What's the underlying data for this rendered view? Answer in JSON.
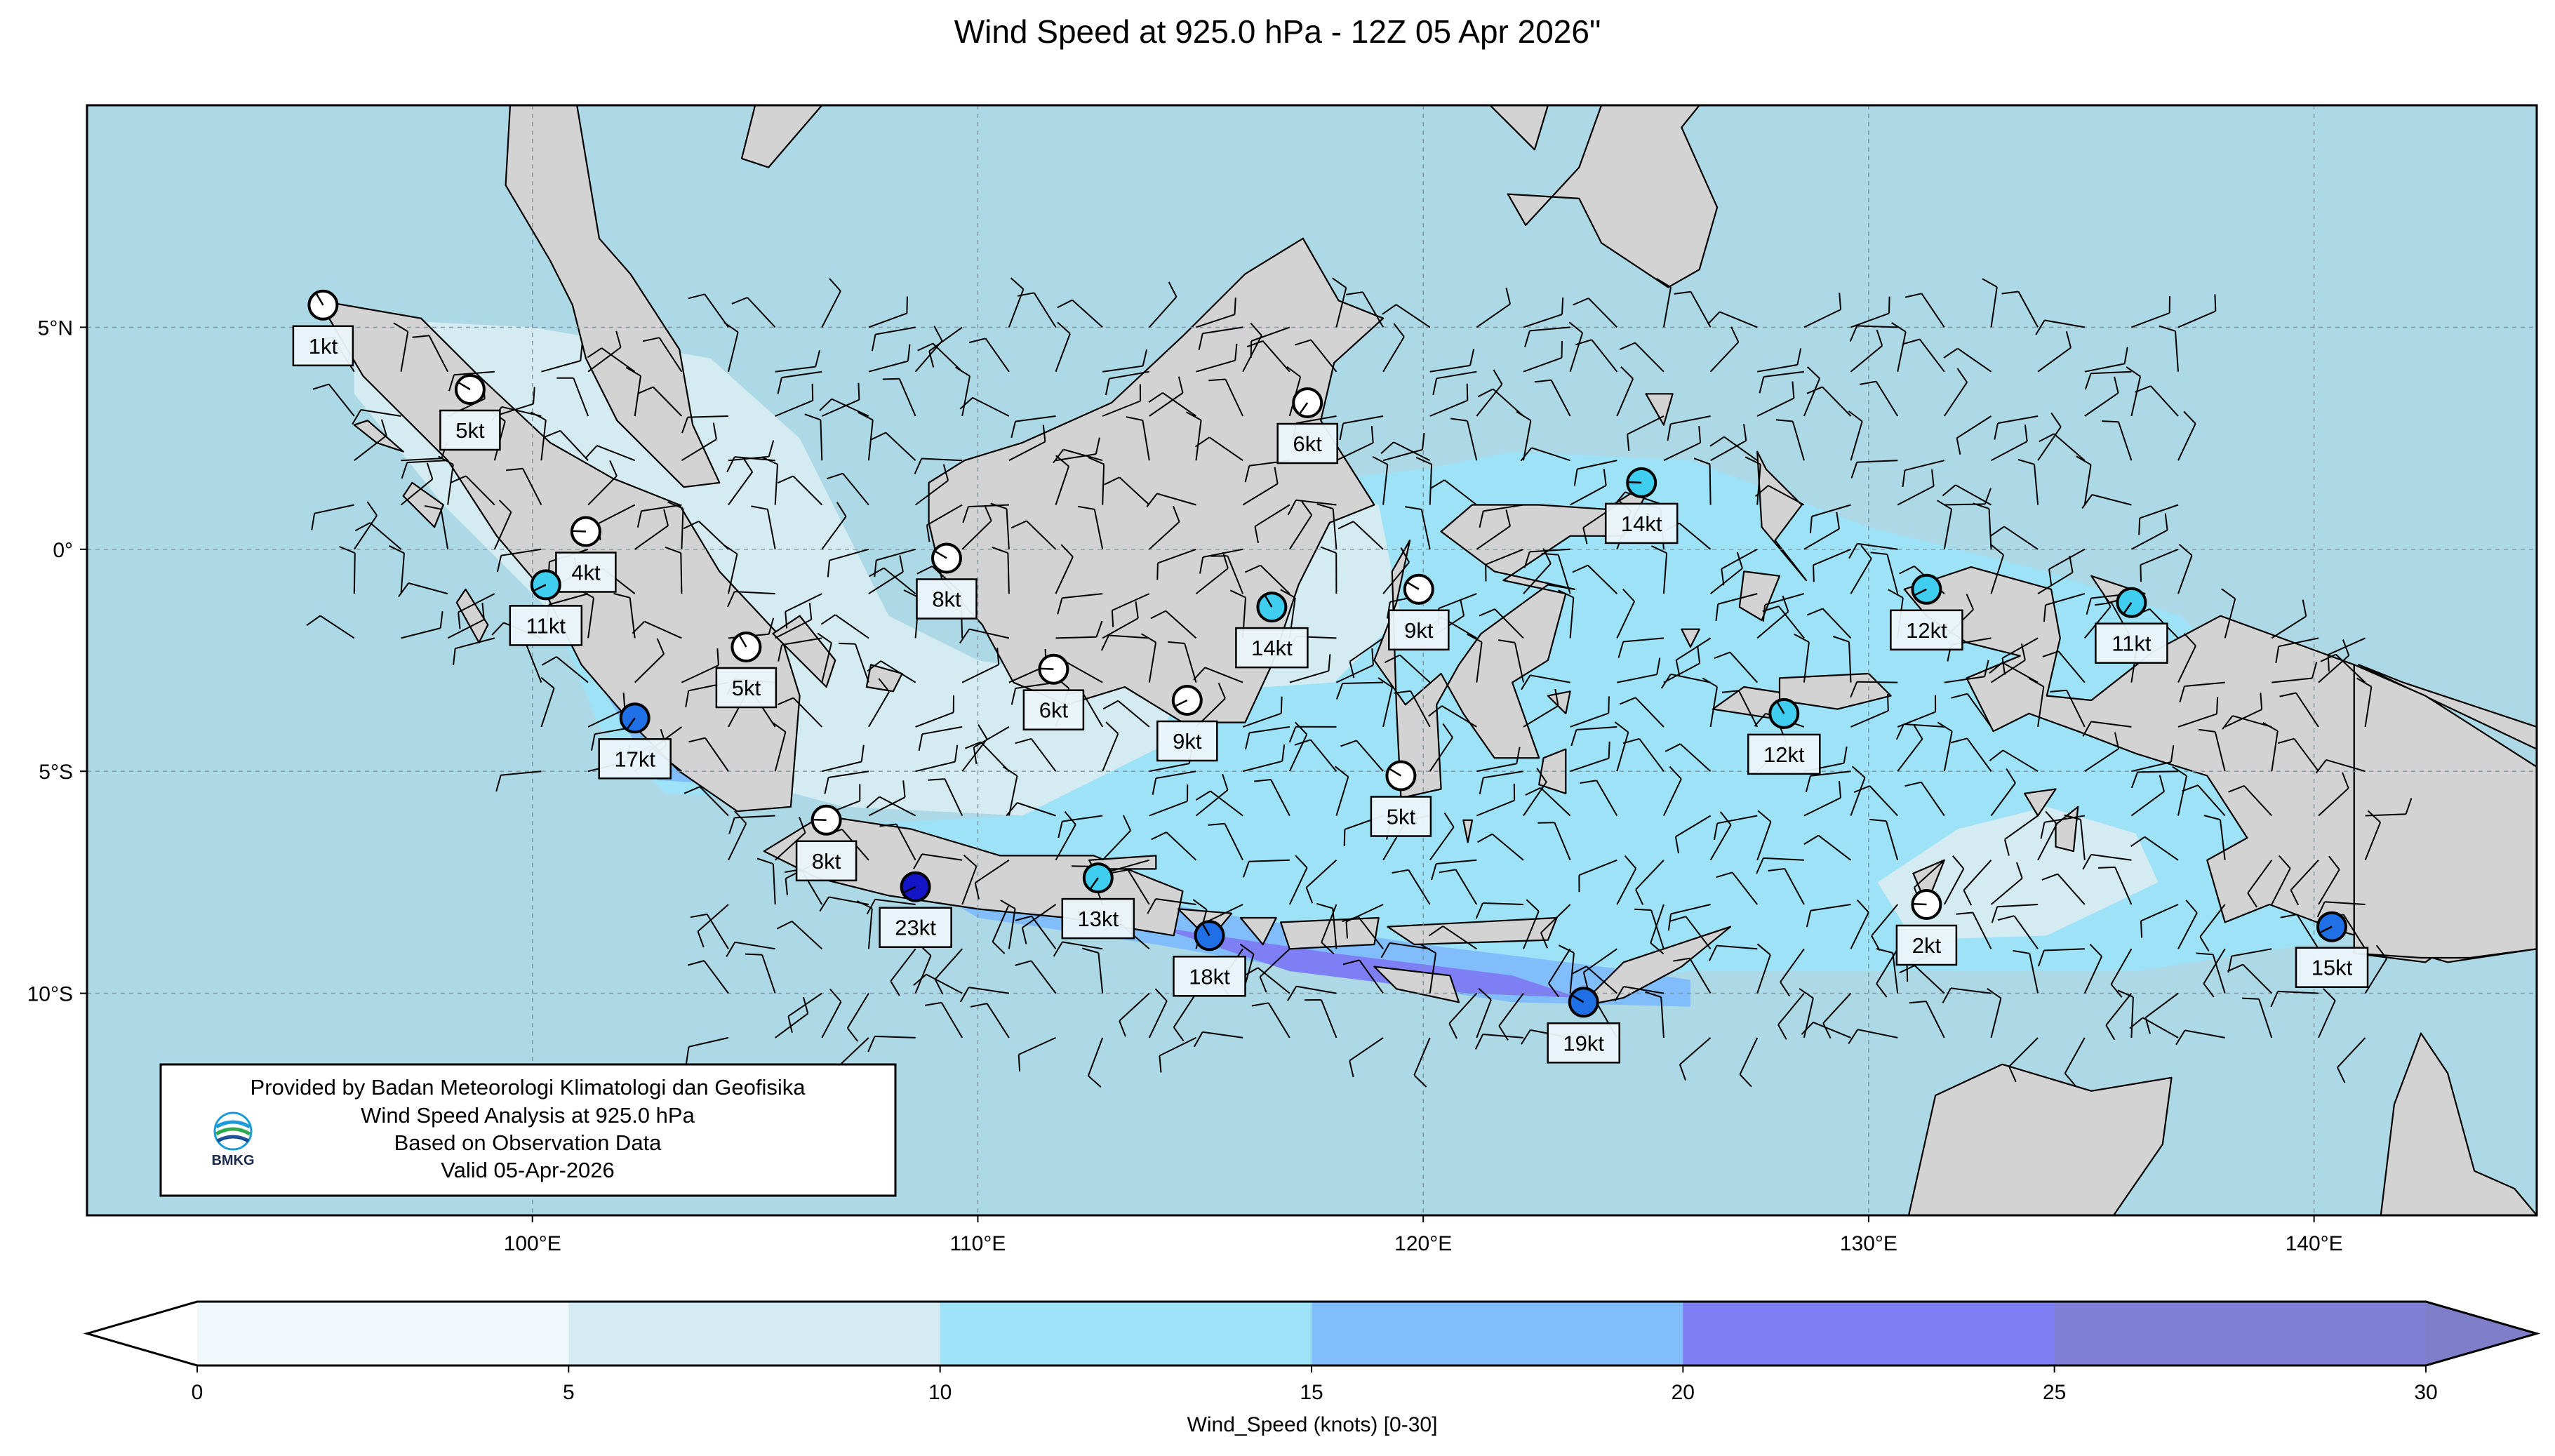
{
  "title": "Wind Speed at 925.0 hPa - 12Z 05 Apr 2026\"",
  "map": {
    "lon_range": [
      90,
      145
    ],
    "lat_range": [
      -15,
      10
    ],
    "colors": {
      "ocean": "#add8e6",
      "land": "#d3d3d3",
      "coast": "#000000",
      "grid": "#7a8f99"
    },
    "lon_ticks": [
      {
        "value": 100,
        "label": "100°E"
      },
      {
        "value": 110,
        "label": "110°E"
      },
      {
        "value": 120,
        "label": "120°E"
      },
      {
        "value": 130,
        "label": "130°E"
      },
      {
        "value": 140,
        "label": "140°E"
      }
    ],
    "lat_ticks": [
      {
        "value": 5,
        "label": "5°N"
      },
      {
        "value": 0,
        "label": "0°"
      },
      {
        "value": -5,
        "label": "5°S"
      },
      {
        "value": -10,
        "label": "10°S"
      }
    ]
  },
  "stations": [
    {
      "lon": 95.3,
      "lat": 5.5,
      "speed": 1,
      "label": "1kt"
    },
    {
      "lon": 98.6,
      "lat": 3.6,
      "speed": 5,
      "label": "5kt"
    },
    {
      "lon": 101.2,
      "lat": 0.4,
      "speed": 4,
      "label": "4kt"
    },
    {
      "lon": 100.3,
      "lat": -0.8,
      "speed": 11,
      "label": "11kt"
    },
    {
      "lon": 102.3,
      "lat": -3.8,
      "speed": 17,
      "label": "17kt"
    },
    {
      "lon": 104.8,
      "lat": -2.2,
      "speed": 5,
      "label": "5kt"
    },
    {
      "lon": 109.3,
      "lat": -0.2,
      "speed": 8,
      "label": "8kt"
    },
    {
      "lon": 111.7,
      "lat": -2.7,
      "speed": 6,
      "label": "6kt"
    },
    {
      "lon": 114.7,
      "lat": -3.4,
      "speed": 9,
      "label": "9kt"
    },
    {
      "lon": 117.4,
      "lat": 3.3,
      "speed": 6,
      "label": "6kt"
    },
    {
      "lon": 116.6,
      "lat": -1.3,
      "speed": 14,
      "label": "14kt"
    },
    {
      "lon": 119.9,
      "lat": -0.9,
      "speed": 9,
      "label": "9kt"
    },
    {
      "lon": 124.9,
      "lat": 1.5,
      "speed": 14,
      "label": "14kt"
    },
    {
      "lon": 131.3,
      "lat": -0.9,
      "speed": 12,
      "label": "12kt"
    },
    {
      "lon": 135.9,
      "lat": -1.2,
      "speed": 11,
      "label": "11kt"
    },
    {
      "lon": 128.1,
      "lat": -3.7,
      "speed": 12,
      "label": "12kt"
    },
    {
      "lon": 119.5,
      "lat": -5.1,
      "speed": 5,
      "label": "5kt"
    },
    {
      "lon": 106.6,
      "lat": -6.1,
      "speed": 8,
      "label": "8kt"
    },
    {
      "lon": 108.6,
      "lat": -7.6,
      "speed": 23,
      "label": "23kt"
    },
    {
      "lon": 112.7,
      "lat": -7.4,
      "speed": 13,
      "label": "13kt"
    },
    {
      "lon": 115.2,
      "lat": -8.7,
      "speed": 18,
      "label": "18kt"
    },
    {
      "lon": 123.6,
      "lat": -10.2,
      "speed": 19,
      "label": "19kt"
    },
    {
      "lon": 131.3,
      "lat": -8.0,
      "speed": 2,
      "label": "2kt"
    },
    {
      "lon": 140.4,
      "lat": -8.5,
      "speed": 15,
      "label": "15kt"
    }
  ],
  "provider": {
    "lines": [
      "Provided by Badan Meteorologi Klimatologi dan Geofisika",
      "Wind Speed Analysis at 925.0 hPa",
      "Based on Observation Data",
      "Valid 05-Apr-2026"
    ],
    "logo_text": "BMKG",
    "logo_icon": "bmkg-logo-icon"
  },
  "colorbar": {
    "bounds": [
      0,
      5,
      10,
      15,
      20,
      25,
      30
    ],
    "tick_labels": [
      "0",
      "5",
      "10",
      "15",
      "20",
      "25",
      "30"
    ],
    "colors": [
      "#f0f8fb",
      "#d4ebf2",
      "#9ee2f7",
      "#80bdfa",
      "#7f7ff5",
      "#7f7fd6"
    ],
    "under_color": "#ffffff",
    "over_color": "#7f7fc9",
    "label": "Wind_Speed (knots) [0-30]"
  }
}
